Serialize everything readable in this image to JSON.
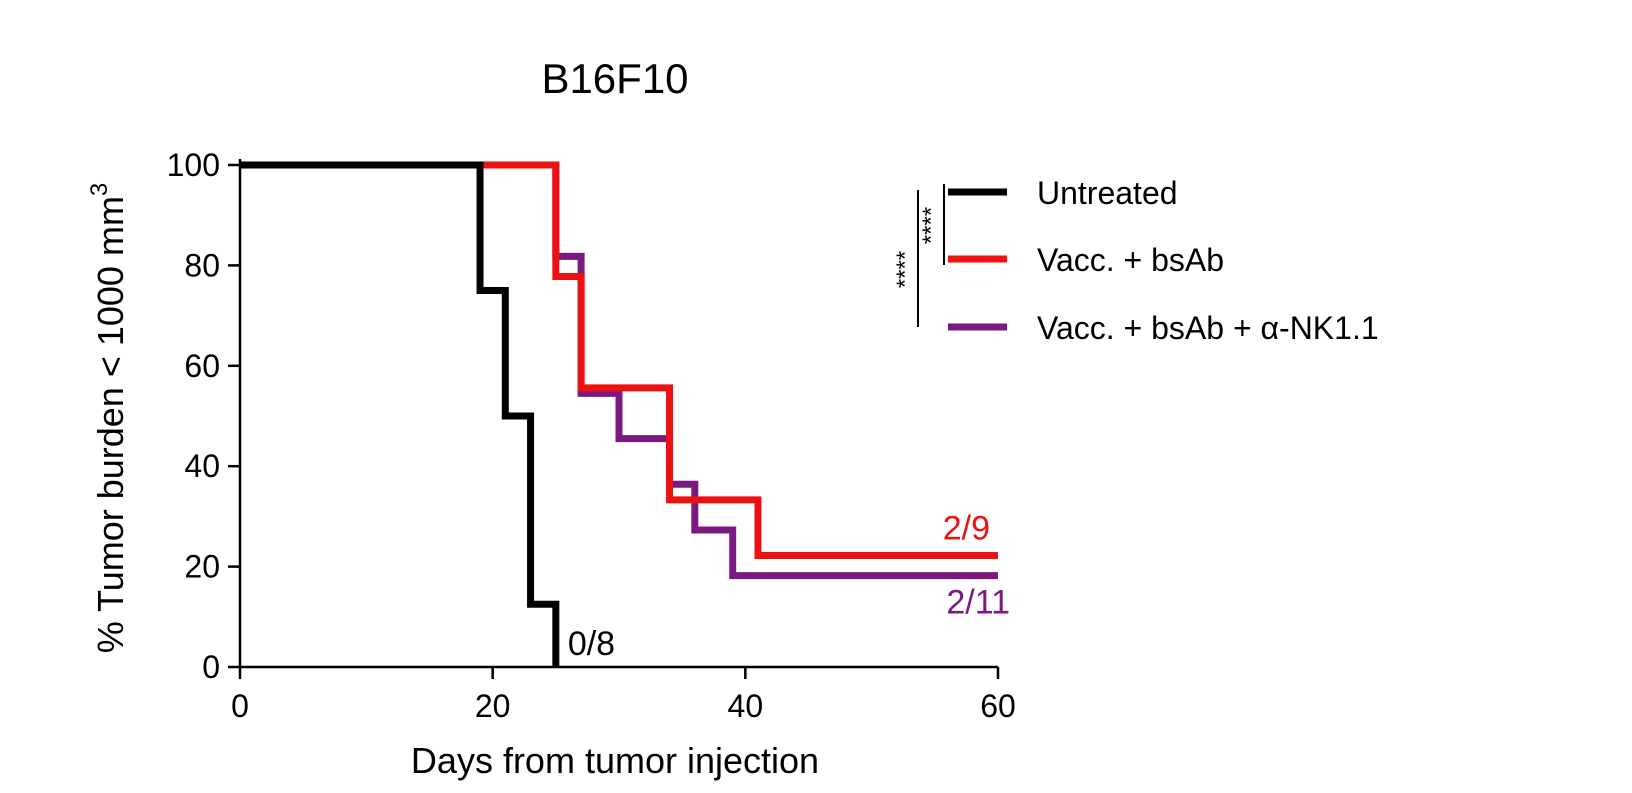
{
  "chart_data": {
    "type": "line",
    "step": true,
    "title": "B16F10",
    "xlabel": "Days from tumor injection",
    "ylabel": "% Tumor burden < 1000 mm",
    "ylabel_superscript": "3",
    "xlim": [
      0,
      60
    ],
    "ylim": [
      0,
      100
    ],
    "x_ticks": [
      "0",
      "20",
      "40",
      "60"
    ],
    "y_ticks": [
      "0",
      "20",
      "40",
      "60",
      "80",
      "100"
    ],
    "grid": false,
    "legend_position": "right",
    "series": [
      {
        "name": "Untreated",
        "color": "#000000",
        "x": [
          0,
          19,
          21,
          23,
          25
        ],
        "y": [
          100,
          75,
          50,
          12.5,
          0
        ],
        "end_label": "0/8"
      },
      {
        "name": "Vacc. + bsAb",
        "color": "#ee1111",
        "x": [
          0,
          25,
          27,
          34,
          41,
          60
        ],
        "y": [
          100,
          77.8,
          55.6,
          33.3,
          22.2,
          22.2
        ],
        "end_label": "2/9"
      },
      {
        "name": "Vacc. + bsAb + α-NK1.1",
        "color": "#7a1a80",
        "x": [
          0,
          25,
          27,
          30,
          34,
          36,
          39,
          60
        ],
        "y": [
          100,
          81.8,
          54.5,
          45.5,
          36.4,
          27.3,
          18.2,
          18.2
        ],
        "end_label": "2/11"
      }
    ],
    "significance": [
      {
        "label": "****",
        "groups": [
          "Untreated",
          "Vacc. + bsAb"
        ]
      },
      {
        "label": "****",
        "groups": [
          "Untreated",
          "Vacc. + bsAb + α-NK1.1"
        ]
      }
    ]
  }
}
